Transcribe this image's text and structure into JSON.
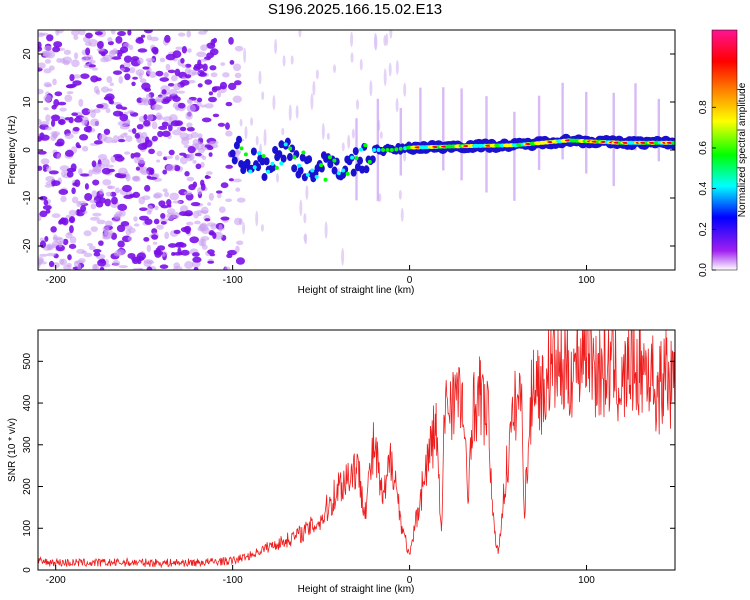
{
  "title": "S196.2025.166.15.02.E13",
  "chart_data": [
    {
      "type": "heatmap",
      "xlabel": "Height of straight line (km)",
      "ylabel": "Frequency (Hz)",
      "xlim": [
        -210,
        150
      ],
      "ylim": [
        -25,
        25
      ],
      "xticks": [
        -200,
        -100,
        0,
        100
      ],
      "yticks": [
        -20,
        -10,
        0,
        10,
        20
      ],
      "colorbar": {
        "label": "Normalized spectral amplitude",
        "range": [
          0,
          1
        ],
        "ticks": [
          0.0,
          0.2,
          0.4,
          0.6,
          0.8
        ],
        "colormap": [
          "#ffffff",
          "#a020f0",
          "#0000ff",
          "#00ffff",
          "#00ff00",
          "#ffff00",
          "#ff8000",
          "#ff0000",
          "#ff1493"
        ]
      },
      "signal_track": [
        {
          "x": -100,
          "y": 0.5
        },
        {
          "x": -90,
          "y": -2.5
        },
        {
          "x": -80,
          "y": -3
        },
        {
          "x": -70,
          "y": 0
        },
        {
          "x": -60,
          "y": -3
        },
        {
          "x": -50,
          "y": -4
        },
        {
          "x": -40,
          "y": -3
        },
        {
          "x": -30,
          "y": -3
        },
        {
          "x": -20,
          "y": 0
        },
        {
          "x": -10,
          "y": 0
        },
        {
          "x": 0,
          "y": 0.5
        },
        {
          "x": 30,
          "y": 0.8
        },
        {
          "x": 60,
          "y": 1
        },
        {
          "x": 90,
          "y": 2
        },
        {
          "x": 120,
          "y": 1.5
        },
        {
          "x": 150,
          "y": 1.5
        }
      ]
    },
    {
      "type": "line",
      "xlabel": "Height of straight line (km)",
      "ylabel": "SNR (10 * v/v)",
      "xlim": [
        -210,
        150
      ],
      "ylim": [
        0,
        575
      ],
      "xticks": [
        -200,
        -100,
        0,
        100
      ],
      "yticks": [
        0,
        100,
        200,
        300,
        400,
        500
      ],
      "color": "#ee1b1b",
      "series": [
        {
          "x": [
            -210,
            -200,
            -180,
            -160,
            -140,
            -120,
            -100,
            -90,
            -80,
            -70,
            -60,
            -50,
            -40,
            -30,
            -25,
            -20,
            -15,
            -10,
            -5,
            0,
            5,
            10,
            15,
            18,
            20,
            25,
            30,
            33,
            35,
            40,
            45,
            47,
            50,
            55,
            60,
            63,
            65,
            70,
            75,
            80,
            85,
            90,
            95,
            100,
            105,
            110,
            115,
            120,
            125,
            130,
            135,
            140,
            145,
            150
          ],
          "y": [
            20,
            18,
            17,
            18,
            17,
            18,
            22,
            35,
            55,
            70,
            90,
            120,
            200,
            250,
            150,
            300,
            160,
            280,
            120,
            30,
            150,
            260,
            350,
            80,
            400,
            420,
            400,
            150,
            380,
            420,
            350,
            120,
            40,
            250,
            400,
            420,
            150,
            480,
            420,
            500,
            480,
            470,
            500,
            560,
            480,
            470,
            500,
            430,
            500,
            480,
            490,
            420,
            480,
            420
          ]
        }
      ]
    }
  ]
}
